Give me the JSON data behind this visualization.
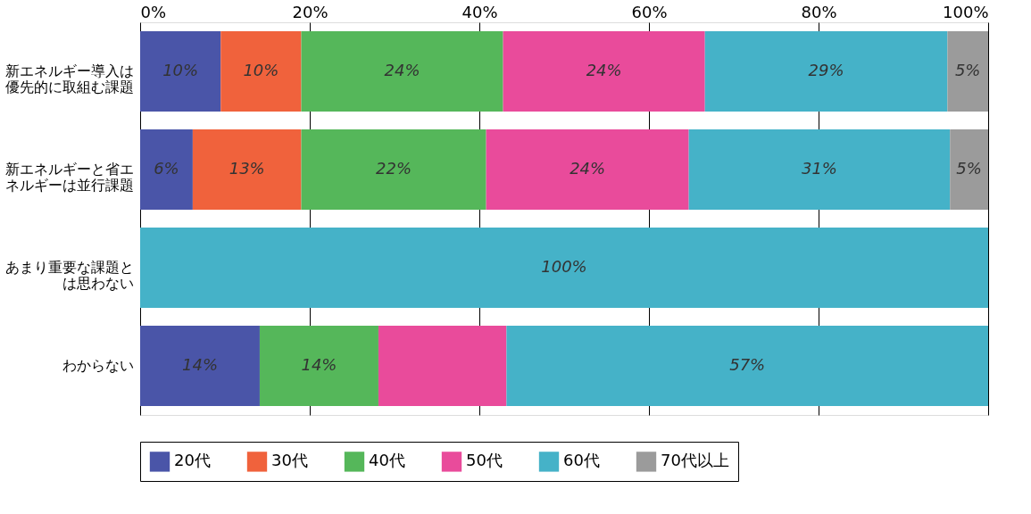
{
  "chart_data": {
    "type": "bar",
    "orientation": "horizontal",
    "stacked": true,
    "categories": [
      "新エネルギー導入は優先的に取組む課題",
      "新エネルギーと省エネルギーは並行課題",
      "あまり重要な課題とは思わない",
      "わからない"
    ],
    "series": [
      {
        "name": "20代",
        "color": "#4a55a8",
        "values": [
          9.5,
          6.2,
          null,
          14.1
        ],
        "value_labels": [
          "10%",
          "6%",
          null,
          "14%"
        ]
      },
      {
        "name": "30代",
        "color": "#f0623c",
        "values": [
          9.5,
          12.8,
          null,
          null
        ],
        "value_labels": [
          "10%",
          "13%",
          null,
          null
        ]
      },
      {
        "name": "40代",
        "color": "#55b75a",
        "values": [
          23.8,
          21.8,
          null,
          14.0
        ],
        "value_labels": [
          "24%",
          "22%",
          null,
          "14%"
        ]
      },
      {
        "name": "50代",
        "color": "#e94b9b",
        "values": [
          23.8,
          23.9,
          null,
          15.1
        ],
        "value_labels": [
          "24%",
          "24%",
          null,
          null
        ]
      },
      {
        "name": "60代",
        "color": "#45b2c8",
        "values": [
          28.6,
          30.8,
          100,
          56.8
        ],
        "value_labels": [
          "29%",
          "31%",
          "100%",
          "57%"
        ]
      },
      {
        "name": "70代以上",
        "color": "#9b9b9b",
        "values": [
          4.8,
          4.5,
          null,
          null
        ],
        "value_labels": [
          "5%",
          "5%",
          null,
          null
        ]
      }
    ],
    "xlim": [
      0,
      100
    ],
    "xticks": [
      {
        "value": 0,
        "label": "0%"
      },
      {
        "value": 20,
        "label": "20%"
      },
      {
        "value": 40,
        "label": "40%"
      },
      {
        "value": 60,
        "label": "60%"
      },
      {
        "value": 80,
        "label": "80%"
      },
      {
        "value": 100,
        "label": "100%"
      }
    ],
    "grid": "x",
    "legend": "bottom"
  }
}
